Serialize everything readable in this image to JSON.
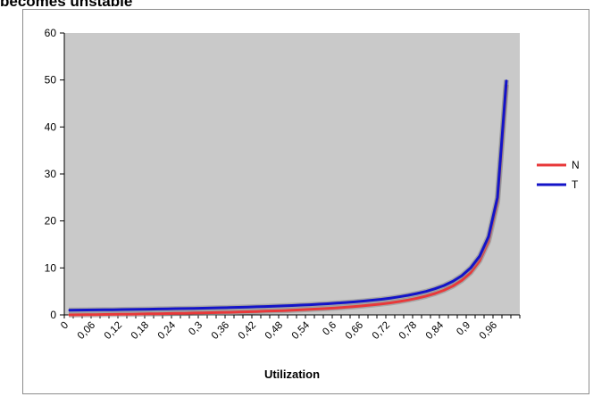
{
  "heading": "becomes unstable",
  "chart_data": {
    "type": "line",
    "title": "",
    "xlabel": "Utilization",
    "ylabel": "",
    "ylim": [
      0,
      60
    ],
    "yticks": [
      0,
      10,
      20,
      30,
      40,
      50,
      60
    ],
    "grid": false,
    "legend_position": "right",
    "x": [
      0,
      0.02,
      0.04,
      0.06,
      0.08,
      0.1,
      0.12,
      0.14,
      0.16,
      0.18,
      0.2,
      0.22,
      0.24,
      0.26,
      0.28,
      0.3,
      0.32,
      0.34,
      0.36,
      0.38,
      0.4,
      0.42,
      0.44,
      0.46,
      0.48,
      0.5,
      0.52,
      0.54,
      0.56,
      0.58,
      0.6,
      0.62,
      0.64,
      0.66,
      0.68,
      0.7,
      0.72,
      0.74,
      0.76,
      0.78,
      0.8,
      0.82,
      0.84,
      0.86,
      0.88,
      0.9,
      0.92,
      0.94,
      0.96,
      0.98
    ],
    "xtick_labels": [
      "0",
      "0,06",
      "0,12",
      "0,18",
      "0,24",
      "0,3",
      "0,36",
      "0,42",
      "0,48",
      "0,54",
      "0,6",
      "0,66",
      "0,72",
      "0,78",
      "0,84",
      "0,9",
      "0,96"
    ],
    "series": [
      {
        "name": "N",
        "color": "#e8393a",
        "values": [
          0,
          0.02,
          0.04,
          0.06,
          0.09,
          0.11,
          0.14,
          0.16,
          0.19,
          0.22,
          0.25,
          0.28,
          0.32,
          0.35,
          0.39,
          0.43,
          0.47,
          0.52,
          0.56,
          0.61,
          0.67,
          0.72,
          0.79,
          0.85,
          0.92,
          1.0,
          1.08,
          1.17,
          1.27,
          1.38,
          1.5,
          1.63,
          1.78,
          1.94,
          2.13,
          2.33,
          2.57,
          2.85,
          3.17,
          3.55,
          4.0,
          4.56,
          5.25,
          6.14,
          7.33,
          9.0,
          11.5,
          15.67,
          24.0,
          49.0
        ]
      },
      {
        "name": "T",
        "color": "#1414c8",
        "values": [
          1.0,
          1.02,
          1.04,
          1.06,
          1.09,
          1.11,
          1.14,
          1.16,
          1.19,
          1.22,
          1.25,
          1.28,
          1.32,
          1.35,
          1.39,
          1.43,
          1.47,
          1.52,
          1.56,
          1.61,
          1.67,
          1.72,
          1.79,
          1.85,
          1.92,
          2.0,
          2.08,
          2.17,
          2.27,
          2.38,
          2.5,
          2.63,
          2.78,
          2.94,
          3.13,
          3.33,
          3.57,
          3.85,
          4.17,
          4.55,
          5.0,
          5.56,
          6.25,
          7.14,
          8.33,
          10.0,
          12.5,
          16.67,
          25.0,
          50.0
        ]
      }
    ]
  }
}
